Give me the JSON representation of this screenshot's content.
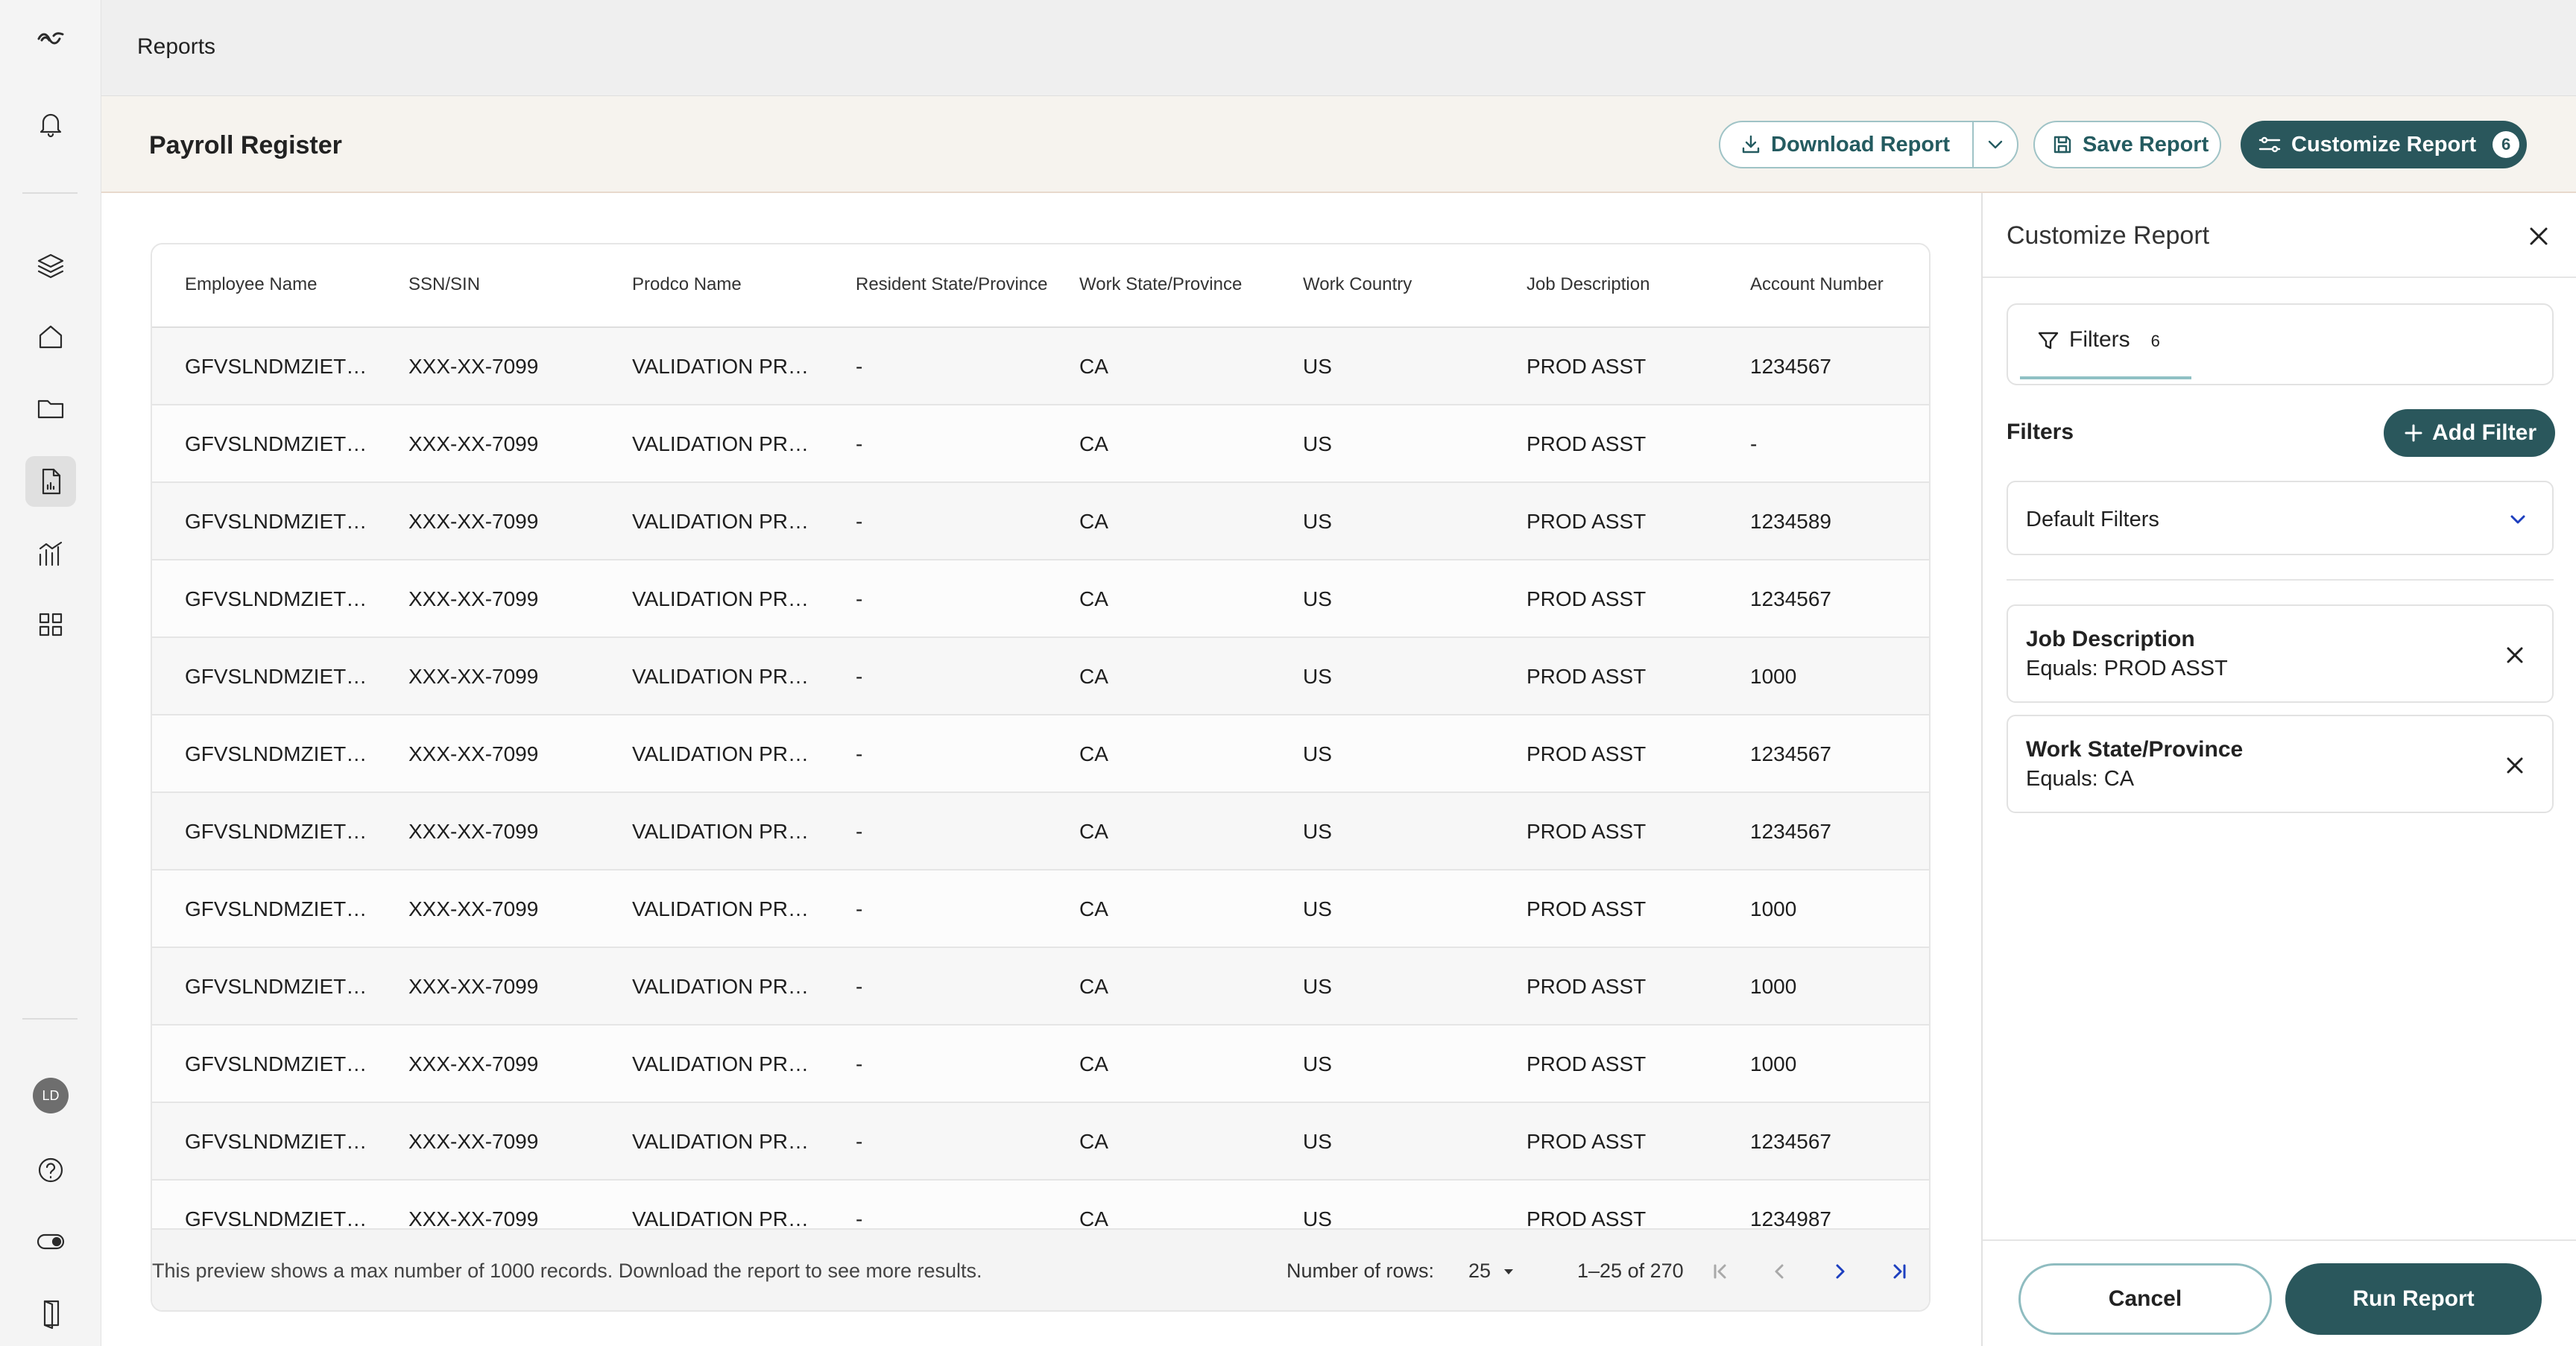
{
  "topbar": {
    "title": "Reports"
  },
  "sidebar": {
    "avatar_initials": "LD",
    "items": [
      {
        "icon": "bell-icon"
      },
      {
        "icon": "layers-icon"
      },
      {
        "icon": "home-icon"
      },
      {
        "icon": "folder-icon"
      },
      {
        "icon": "report-icon"
      },
      {
        "icon": "analytics-icon"
      },
      {
        "icon": "grid-icon"
      },
      {
        "icon": "help-icon"
      },
      {
        "icon": "toggle-icon"
      },
      {
        "icon": "logout-icon"
      }
    ]
  },
  "header": {
    "page_title": "Payroll Register",
    "download_label": "Download Report",
    "save_label": "Save Report",
    "customize_label": "Customize Report",
    "customize_count": "6"
  },
  "table": {
    "columns": [
      "Employee Name",
      "SSN/SIN",
      "Prodco Name",
      "Resident State/Province",
      "Work State/Province",
      "Work Country",
      "Job Description",
      "Account Number"
    ],
    "rows": [
      [
        "GFVSLNDMZIETUAH",
        "XXX-XX-7099",
        "VALIDATION PRODCO",
        "-",
        "CA",
        "US",
        "PROD ASST",
        "1234567"
      ],
      [
        "GFVSLNDMZIETUAH",
        "XXX-XX-7099",
        "VALIDATION PRODCO",
        "-",
        "CA",
        "US",
        "PROD ASST",
        "-"
      ],
      [
        "GFVSLNDMZIETUAH",
        "XXX-XX-7099",
        "VALIDATION PRODCO",
        "-",
        "CA",
        "US",
        "PROD ASST",
        "1234589"
      ],
      [
        "GFVSLNDMZIETUAH",
        "XXX-XX-7099",
        "VALIDATION PRODCO",
        "-",
        "CA",
        "US",
        "PROD ASST",
        "1234567"
      ],
      [
        "GFVSLNDMZIETUAH",
        "XXX-XX-7099",
        "VALIDATION PRODCO",
        "-",
        "CA",
        "US",
        "PROD ASST",
        "1000"
      ],
      [
        "GFVSLNDMZIETUAH",
        "XXX-XX-7099",
        "VALIDATION PRODCO",
        "-",
        "CA",
        "US",
        "PROD ASST",
        "1234567"
      ],
      [
        "GFVSLNDMZIETUAH",
        "XXX-XX-7099",
        "VALIDATION PRODCO",
        "-",
        "CA",
        "US",
        "PROD ASST",
        "1234567"
      ],
      [
        "GFVSLNDMZIETUAH",
        "XXX-XX-7099",
        "VALIDATION PRODCO",
        "-",
        "CA",
        "US",
        "PROD ASST",
        "1000"
      ],
      [
        "GFVSLNDMZIETUAH",
        "XXX-XX-7099",
        "VALIDATION PRODCO",
        "-",
        "CA",
        "US",
        "PROD ASST",
        "1000"
      ],
      [
        "GFVSLNDMZIETUAH",
        "XXX-XX-7099",
        "VALIDATION PRODCO",
        "-",
        "CA",
        "US",
        "PROD ASST",
        "1000"
      ],
      [
        "GFVSLNDMZIETUAH",
        "XXX-XX-7099",
        "VALIDATION PRODCO",
        "-",
        "CA",
        "US",
        "PROD ASST",
        "1234567"
      ],
      [
        "GFVSLNDMZIETUAH",
        "XXX-XX-7099",
        "VALIDATION PRODCO",
        "-",
        "CA",
        "US",
        "PROD ASST",
        "1234987"
      ]
    ],
    "footer": {
      "note": "This preview shows a max number of 1000 records. Download the report to see more results.",
      "rows_label": "Number of rows:",
      "rows_value": "25",
      "range": "1–25 of 270"
    }
  },
  "panel": {
    "title": "Customize Report",
    "tab_label": "Filters",
    "tab_count": "6",
    "filters_label": "Filters",
    "add_filter_label": "Add Filter",
    "default_filters": "Default Filters",
    "chips": [
      {
        "name": "Job Description",
        "condition": "Equals: PROD ASST"
      },
      {
        "name": "Work State/Province",
        "condition": "Equals: CA"
      }
    ],
    "cancel_label": "Cancel",
    "run_label": "Run Report"
  },
  "colors": {
    "accent": "#2a575c",
    "accent_light": "#9fc3c6",
    "link_blue": "#1d3fbf",
    "header_band": "#f6f3ee"
  }
}
